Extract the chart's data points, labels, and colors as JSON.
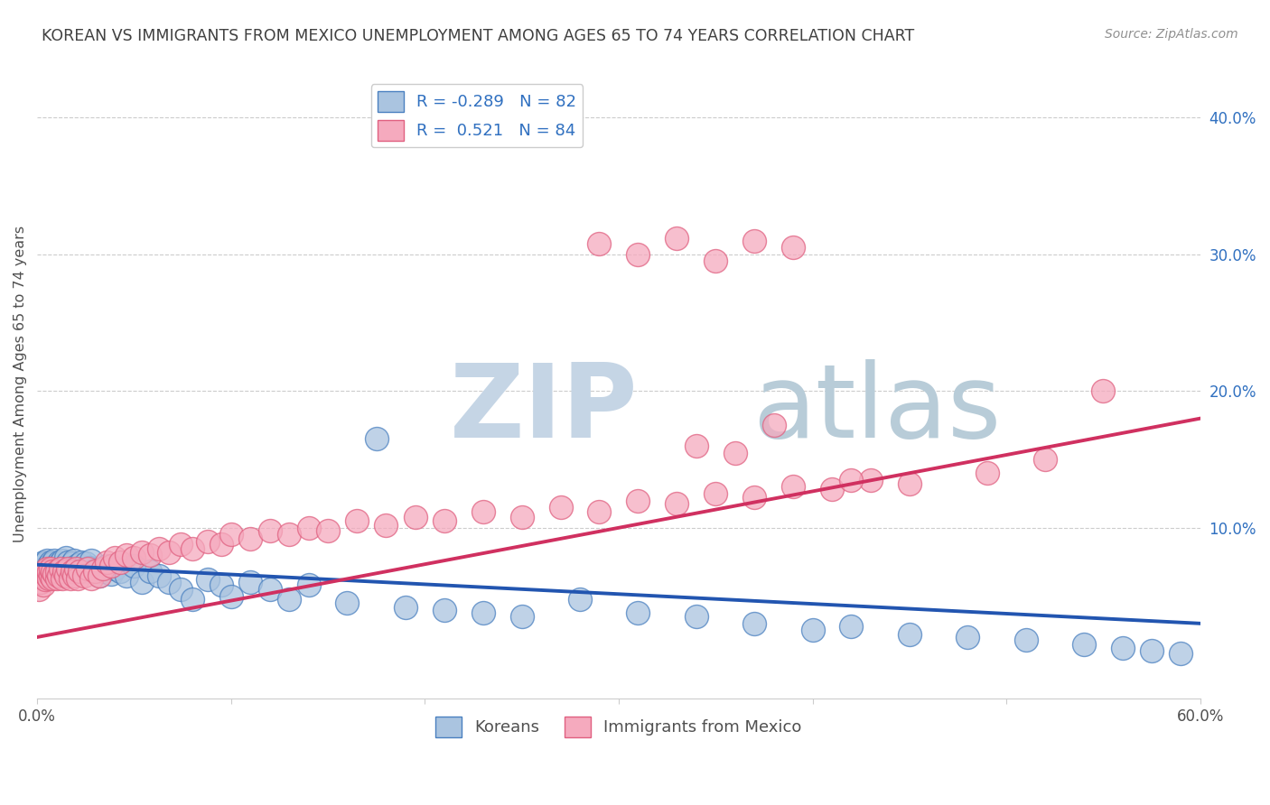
{
  "title": "KOREAN VS IMMIGRANTS FROM MEXICO UNEMPLOYMENT AMONG AGES 65 TO 74 YEARS CORRELATION CHART",
  "source": "Source: ZipAtlas.com",
  "ylabel": "Unemployment Among Ages 65 to 74 years",
  "yaxis_ticks": [
    "10.0%",
    "20.0%",
    "30.0%",
    "40.0%"
  ],
  "yaxis_tick_vals": [
    0.1,
    0.2,
    0.3,
    0.4
  ],
  "xmin": 0.0,
  "xmax": 0.6,
  "ymin": -0.025,
  "ymax": 0.435,
  "korean_color": "#aac4e0",
  "korean_edge_color": "#4a80c0",
  "mexico_color": "#f5aabe",
  "mexico_edge_color": "#e06080",
  "korean_R": -0.289,
  "korean_N": 82,
  "mexico_R": 0.521,
  "mexico_N": 84,
  "korean_line_color": "#2255b0",
  "mexico_line_color": "#d03060",
  "legend_label_korean": "Koreans",
  "legend_label_mexico": "Immigrants from Mexico",
  "watermark_zip": "ZIP",
  "watermark_atlas": "atlas",
  "watermark_zip_color": "#c5d5e5",
  "watermark_atlas_color": "#b8ccd8",
  "background_color": "#ffffff",
  "grid_color": "#cccccc",
  "title_color": "#404040",
  "source_color": "#909090",
  "korean_x": [
    0.001,
    0.002,
    0.003,
    0.003,
    0.004,
    0.004,
    0.005,
    0.005,
    0.006,
    0.006,
    0.007,
    0.007,
    0.008,
    0.008,
    0.009,
    0.009,
    0.01,
    0.01,
    0.011,
    0.011,
    0.012,
    0.012,
    0.013,
    0.013,
    0.014,
    0.015,
    0.015,
    0.016,
    0.016,
    0.017,
    0.018,
    0.018,
    0.019,
    0.02,
    0.021,
    0.022,
    0.023,
    0.024,
    0.025,
    0.027,
    0.028,
    0.03,
    0.032,
    0.034,
    0.036,
    0.038,
    0.04,
    0.043,
    0.046,
    0.05,
    0.054,
    0.058,
    0.063,
    0.068,
    0.074,
    0.08,
    0.088,
    0.095,
    0.1,
    0.11,
    0.12,
    0.13,
    0.14,
    0.16,
    0.175,
    0.19,
    0.21,
    0.23,
    0.25,
    0.28,
    0.31,
    0.34,
    0.37,
    0.4,
    0.42,
    0.45,
    0.48,
    0.51,
    0.54,
    0.56,
    0.575,
    0.59
  ],
  "korean_y": [
    0.068,
    0.072,
    0.07,
    0.075,
    0.068,
    0.074,
    0.071,
    0.076,
    0.069,
    0.073,
    0.07,
    0.075,
    0.068,
    0.074,
    0.071,
    0.076,
    0.069,
    0.073,
    0.07,
    0.075,
    0.068,
    0.074,
    0.071,
    0.076,
    0.069,
    0.073,
    0.078,
    0.07,
    0.075,
    0.068,
    0.074,
    0.071,
    0.076,
    0.069,
    0.073,
    0.07,
    0.075,
    0.068,
    0.074,
    0.071,
    0.076,
    0.069,
    0.065,
    0.068,
    0.072,
    0.066,
    0.07,
    0.068,
    0.065,
    0.072,
    0.06,
    0.068,
    0.065,
    0.06,
    0.055,
    0.048,
    0.062,
    0.058,
    0.05,
    0.06,
    0.055,
    0.048,
    0.058,
    0.045,
    0.165,
    0.042,
    0.04,
    0.038,
    0.035,
    0.048,
    0.038,
    0.035,
    0.03,
    0.025,
    0.028,
    0.022,
    0.02,
    0.018,
    0.015,
    0.012,
    0.01,
    0.008
  ],
  "mexico_x": [
    0.001,
    0.002,
    0.003,
    0.003,
    0.004,
    0.004,
    0.005,
    0.005,
    0.006,
    0.006,
    0.007,
    0.007,
    0.008,
    0.008,
    0.009,
    0.01,
    0.01,
    0.011,
    0.012,
    0.013,
    0.014,
    0.015,
    0.016,
    0.017,
    0.018,
    0.019,
    0.02,
    0.021,
    0.022,
    0.024,
    0.026,
    0.028,
    0.03,
    0.032,
    0.034,
    0.036,
    0.038,
    0.04,
    0.043,
    0.046,
    0.05,
    0.054,
    0.058,
    0.063,
    0.068,
    0.074,
    0.08,
    0.088,
    0.095,
    0.1,
    0.11,
    0.12,
    0.13,
    0.14,
    0.15,
    0.165,
    0.18,
    0.195,
    0.21,
    0.23,
    0.25,
    0.27,
    0.29,
    0.31,
    0.33,
    0.35,
    0.37,
    0.39,
    0.41,
    0.43,
    0.29,
    0.31,
    0.33,
    0.35,
    0.37,
    0.39,
    0.42,
    0.45,
    0.49,
    0.52,
    0.55,
    0.34,
    0.36,
    0.38
  ],
  "mexico_y": [
    0.055,
    0.06,
    0.058,
    0.064,
    0.062,
    0.068,
    0.065,
    0.07,
    0.063,
    0.068,
    0.065,
    0.07,
    0.063,
    0.068,
    0.066,
    0.063,
    0.068,
    0.065,
    0.07,
    0.063,
    0.068,
    0.065,
    0.07,
    0.063,
    0.068,
    0.065,
    0.07,
    0.063,
    0.068,
    0.065,
    0.07,
    0.063,
    0.068,
    0.065,
    0.07,
    0.075,
    0.072,
    0.078,
    0.075,
    0.08,
    0.078,
    0.082,
    0.08,
    0.085,
    0.082,
    0.088,
    0.085,
    0.09,
    0.088,
    0.095,
    0.092,
    0.098,
    0.095,
    0.1,
    0.098,
    0.105,
    0.102,
    0.108,
    0.105,
    0.112,
    0.108,
    0.115,
    0.112,
    0.12,
    0.118,
    0.125,
    0.122,
    0.13,
    0.128,
    0.135,
    0.308,
    0.3,
    0.312,
    0.295,
    0.31,
    0.305,
    0.135,
    0.132,
    0.14,
    0.15,
    0.2,
    0.16,
    0.155,
    0.175
  ]
}
